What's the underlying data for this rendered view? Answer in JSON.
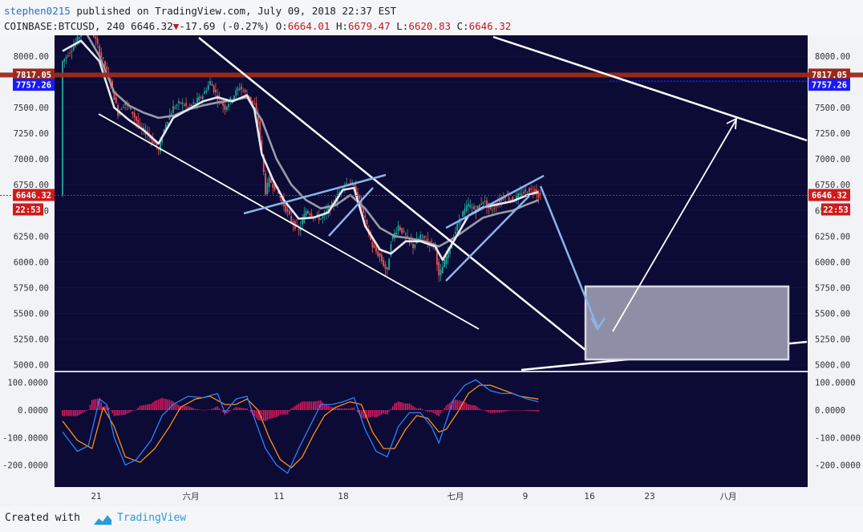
{
  "header": {
    "author": "stephen0215",
    "published_text": "published on TradingView.com, July 09, 2018 22:37 EST",
    "symbol": "COINBASE:BTCUSD, 240",
    "last": "6646.32",
    "change": "-17.69 (-0.27%)",
    "o_label": "O:",
    "o": "6664.01",
    "h_label": "H:",
    "h": "6679.47",
    "l_label": "L:",
    "l": "6620.83",
    "c_label": "C:",
    "c": "6646.32"
  },
  "footer": {
    "created": "Created with",
    "brand": "TradingView"
  },
  "colors": {
    "background": "#0b0b35",
    "price_line": "#d02020",
    "resistance": "#9c2a1a",
    "blue_level": "#1a1aff",
    "channel_white": "#ffffff",
    "channel_blue": "#8ab4e8",
    "ma_fast": "#e8e8f0",
    "ma_slow": "#9a9aa6",
    "macd": "#2f80ff",
    "signal": "#ff8c1a",
    "histogram": "#d81b60",
    "target_box": "#8e8ea6"
  },
  "chart_data": {
    "type": "candlestick",
    "price_axis": {
      "min": 5000,
      "max": 8000,
      "ticks": [
        "8000.00",
        "7750.00",
        "7500.00",
        "7250.00",
        "7000.00",
        "6750.00",
        "6500.00",
        "6250.00",
        "6000.00",
        "5750.00",
        "5500.00",
        "5250.00",
        "5000.00"
      ]
    },
    "time_labels": [
      "21",
      "六月",
      "11",
      "18",
      "七月",
      "9",
      "16",
      "23",
      "八月"
    ],
    "price_badges": {
      "resistance": "7817.05",
      "blue_level": "7757.26",
      "last_price": "6646.32",
      "countdown": "22:53"
    },
    "price_path": [
      [
        0,
        7950
      ],
      [
        3,
        8100
      ],
      [
        7,
        8350
      ],
      [
        11,
        7950
      ],
      [
        13,
        7750
      ],
      [
        15,
        7450
      ],
      [
        17,
        7550
      ],
      [
        19,
        7450
      ],
      [
        21,
        7300
      ],
      [
        23,
        7250
      ],
      [
        25,
        7150
      ],
      [
        26,
        7080
      ],
      [
        28,
        7350
      ],
      [
        30,
        7500
      ],
      [
        32,
        7550
      ],
      [
        34,
        7500
      ],
      [
        36,
        7550
      ],
      [
        38,
        7620
      ],
      [
        40,
        7750
      ],
      [
        42,
        7600
      ],
      [
        44,
        7500
      ],
      [
        46,
        7600
      ],
      [
        48,
        7700
      ],
      [
        50,
        7620
      ],
      [
        52,
        7520
      ],
      [
        53,
        7350
      ],
      [
        54,
        7050
      ],
      [
        55,
        6680
      ],
      [
        56,
        6800
      ],
      [
        58,
        6700
      ],
      [
        60,
        6550
      ],
      [
        62,
        6400
      ],
      [
        64,
        6300
      ],
      [
        66,
        6500
      ],
      [
        68,
        6450
      ],
      [
        70,
        6420
      ],
      [
        72,
        6500
      ],
      [
        74,
        6600
      ],
      [
        76,
        6750
      ],
      [
        78,
        6780
      ],
      [
        80,
        6650
      ],
      [
        82,
        6400
      ],
      [
        84,
        6150
      ],
      [
        86,
        6050
      ],
      [
        88,
        5900
      ],
      [
        89,
        6200
      ],
      [
        91,
        6350
      ],
      [
        93,
        6250
      ],
      [
        95,
        6150
      ],
      [
        97,
        6250
      ],
      [
        99,
        6200
      ],
      [
        101,
        6150
      ],
      [
        102,
        5850
      ],
      [
        104,
        6050
      ],
      [
        106,
        6250
      ],
      [
        108,
        6450
      ],
      [
        110,
        6550
      ],
      [
        112,
        6500
      ],
      [
        114,
        6600
      ],
      [
        116,
        6500
      ],
      [
        118,
        6580
      ],
      [
        120,
        6650
      ],
      [
        122,
        6600
      ],
      [
        124,
        6650
      ],
      [
        126,
        6700
      ],
      [
        128,
        6700
      ],
      [
        129,
        6646
      ]
    ],
    "ma_fast": [
      [
        0,
        8050
      ],
      [
        5,
        8150
      ],
      [
        10,
        7950
      ],
      [
        14,
        7500
      ],
      [
        18,
        7380
      ],
      [
        22,
        7280
      ],
      [
        26,
        7150
      ],
      [
        30,
        7400
      ],
      [
        34,
        7480
      ],
      [
        38,
        7560
      ],
      [
        42,
        7600
      ],
      [
        46,
        7560
      ],
      [
        50,
        7620
      ],
      [
        52,
        7480
      ],
      [
        54,
        7050
      ],
      [
        57,
        6800
      ],
      [
        60,
        6600
      ],
      [
        64,
        6420
      ],
      [
        68,
        6430
      ],
      [
        72,
        6480
      ],
      [
        76,
        6700
      ],
      [
        79,
        6720
      ],
      [
        82,
        6350
      ],
      [
        86,
        6120
      ],
      [
        89,
        6080
      ],
      [
        93,
        6200
      ],
      [
        97,
        6200
      ],
      [
        101,
        6150
      ],
      [
        103,
        6020
      ],
      [
        106,
        6200
      ],
      [
        110,
        6450
      ],
      [
        114,
        6530
      ],
      [
        118,
        6560
      ],
      [
        122,
        6590
      ],
      [
        126,
        6650
      ],
      [
        129,
        6680
      ]
    ],
    "ma_slow": [
      [
        0,
        8250
      ],
      [
        6,
        8250
      ],
      [
        10,
        8000
      ],
      [
        14,
        7650
      ],
      [
        18,
        7520
      ],
      [
        22,
        7450
      ],
      [
        26,
        7400
      ],
      [
        30,
        7420
      ],
      [
        34,
        7480
      ],
      [
        38,
        7520
      ],
      [
        42,
        7550
      ],
      [
        46,
        7570
      ],
      [
        50,
        7600
      ],
      [
        54,
        7380
      ],
      [
        58,
        7000
      ],
      [
        62,
        6750
      ],
      [
        66,
        6600
      ],
      [
        70,
        6520
      ],
      [
        74,
        6550
      ],
      [
        78,
        6650
      ],
      [
        82,
        6520
      ],
      [
        86,
        6330
      ],
      [
        90,
        6250
      ],
      [
        94,
        6230
      ],
      [
        98,
        6200
      ],
      [
        102,
        6150
      ],
      [
        106,
        6230
      ],
      [
        110,
        6330
      ],
      [
        114,
        6430
      ],
      [
        118,
        6470
      ],
      [
        122,
        6500
      ],
      [
        126,
        6560
      ],
      [
        129,
        6600
      ]
    ],
    "macd_panel": {
      "axis_ticks": [
        "100.0000",
        "0.0000",
        "-100.0000",
        "-200.0000"
      ],
      "macd_line": [
        [
          0,
          -80
        ],
        [
          4,
          -150
        ],
        [
          7,
          -130
        ],
        [
          10,
          40
        ],
        [
          12,
          20
        ],
        [
          14,
          -100
        ],
        [
          17,
          -200
        ],
        [
          20,
          -180
        ],
        [
          24,
          -110
        ],
        [
          27,
          -20
        ],
        [
          30,
          20
        ],
        [
          34,
          50
        ],
        [
          38,
          45
        ],
        [
          42,
          60
        ],
        [
          44,
          -10
        ],
        [
          47,
          40
        ],
        [
          50,
          50
        ],
        [
          52,
          -30
        ],
        [
          55,
          -140
        ],
        [
          58,
          -200
        ],
        [
          61,
          -230
        ],
        [
          64,
          -140
        ],
        [
          67,
          -60
        ],
        [
          70,
          20
        ],
        [
          73,
          20
        ],
        [
          76,
          30
        ],
        [
          79,
          45
        ],
        [
          82,
          -70
        ],
        [
          85,
          -150
        ],
        [
          88,
          -170
        ],
        [
          91,
          -60
        ],
        [
          94,
          -10
        ],
        [
          97,
          -10
        ],
        [
          100,
          -60
        ],
        [
          102,
          -120
        ],
        [
          104,
          -40
        ],
        [
          106,
          40
        ],
        [
          109,
          90
        ],
        [
          112,
          110
        ],
        [
          116,
          70
        ],
        [
          119,
          60
        ],
        [
          122,
          60
        ],
        [
          126,
          40
        ],
        [
          129,
          30
        ]
      ],
      "signal_line": [
        [
          0,
          -40
        ],
        [
          4,
          -110
        ],
        [
          8,
          -140
        ],
        [
          11,
          10
        ],
        [
          14,
          -60
        ],
        [
          17,
          -170
        ],
        [
          21,
          -190
        ],
        [
          25,
          -140
        ],
        [
          29,
          -60
        ],
        [
          32,
          10
        ],
        [
          36,
          40
        ],
        [
          40,
          50
        ],
        [
          44,
          20
        ],
        [
          47,
          20
        ],
        [
          50,
          40
        ],
        [
          53,
          0
        ],
        [
          56,
          -100
        ],
        [
          59,
          -180
        ],
        [
          62,
          -210
        ],
        [
          65,
          -170
        ],
        [
          68,
          -90
        ],
        [
          71,
          -20
        ],
        [
          74,
          10
        ],
        [
          78,
          30
        ],
        [
          81,
          20
        ],
        [
          84,
          -80
        ],
        [
          87,
          -140
        ],
        [
          90,
          -140
        ],
        [
          93,
          -70
        ],
        [
          96,
          -20
        ],
        [
          99,
          -30
        ],
        [
          102,
          -80
        ],
        [
          104,
          -70
        ],
        [
          107,
          -10
        ],
        [
          110,
          60
        ],
        [
          113,
          90
        ],
        [
          116,
          90
        ],
        [
          120,
          70
        ],
        [
          124,
          50
        ],
        [
          129,
          40
        ]
      ]
    }
  }
}
